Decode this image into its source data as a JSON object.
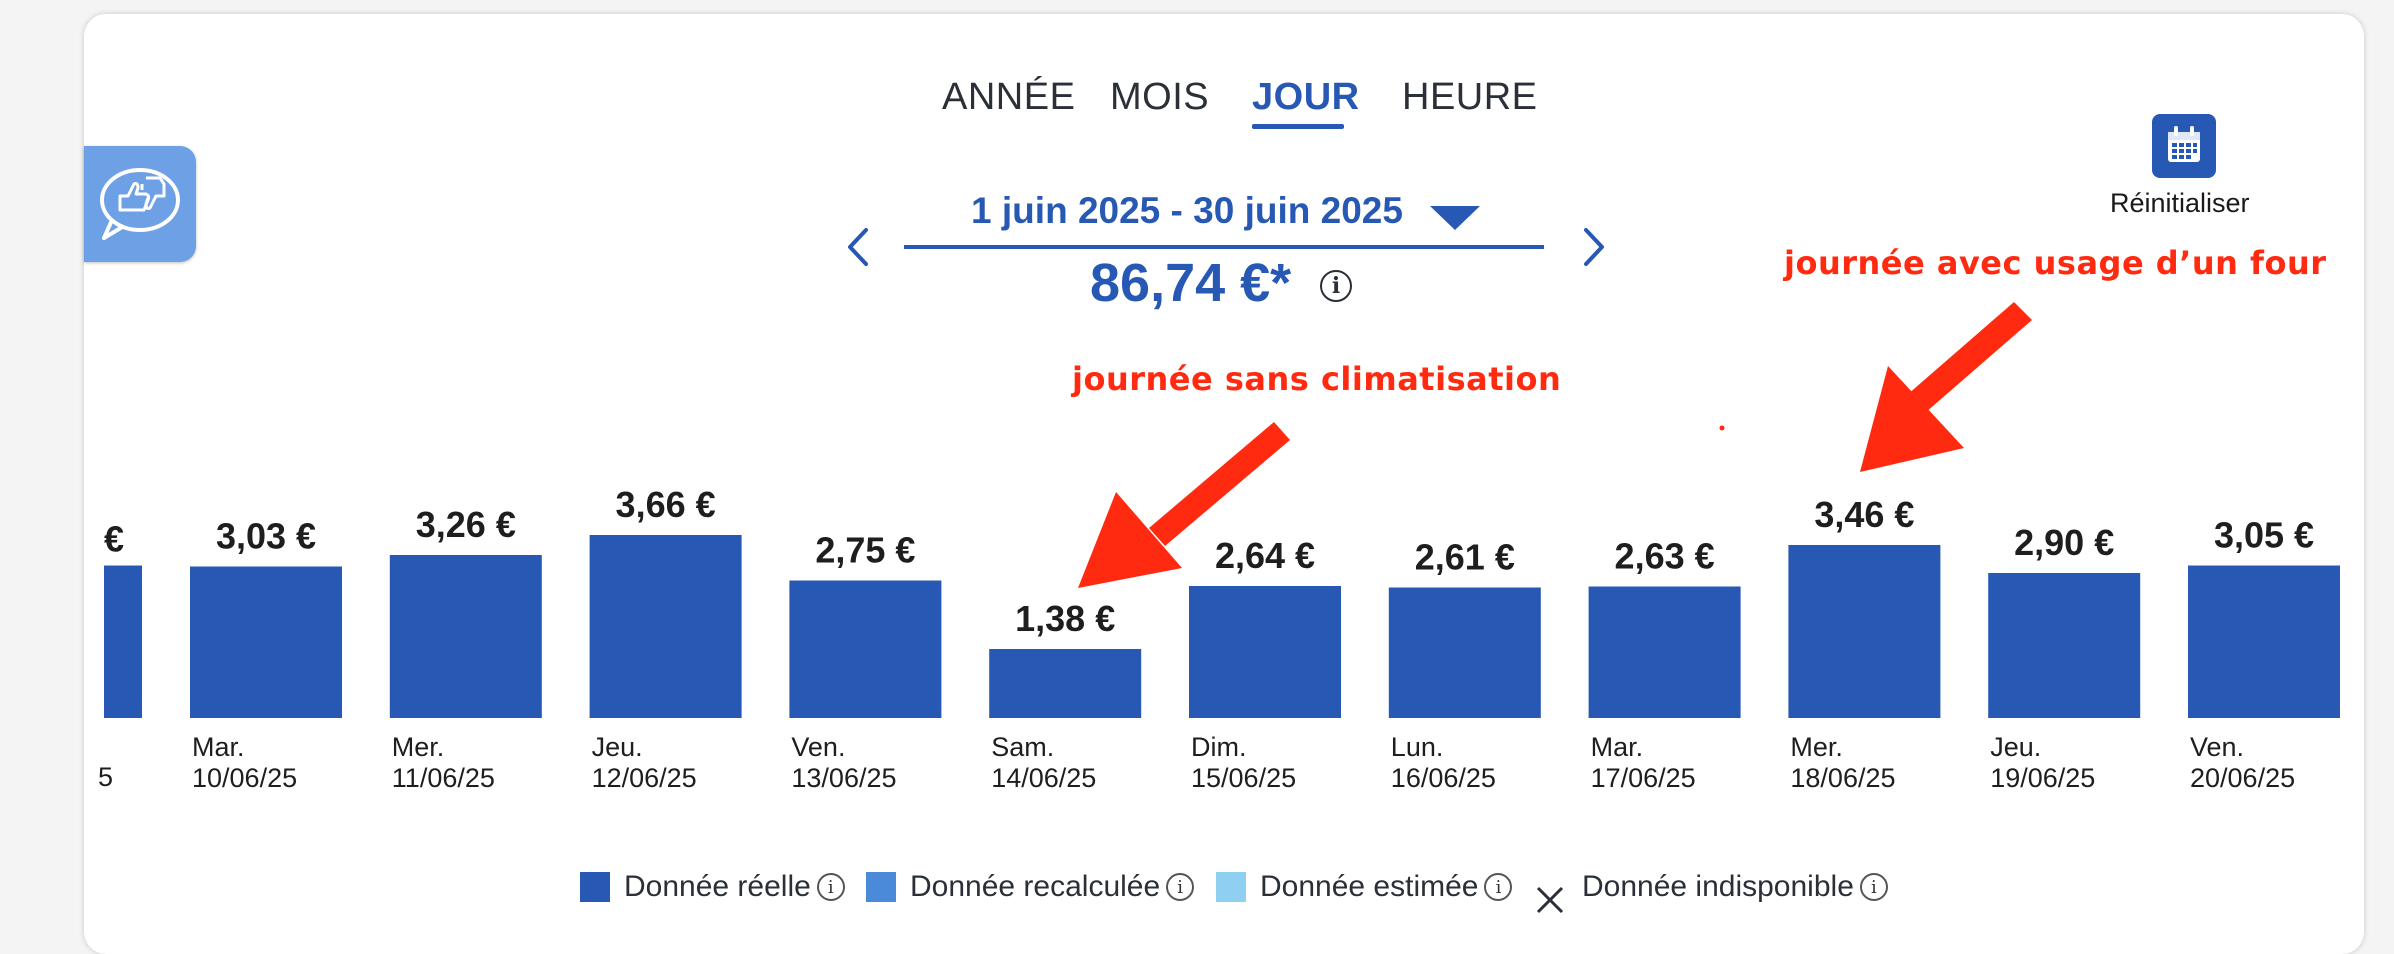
{
  "tabs": [
    {
      "label": "ANNÉE",
      "active": false
    },
    {
      "label": "MOIS",
      "active": false
    },
    {
      "label": "JOUR",
      "active": true
    },
    {
      "label": "HEURE",
      "active": false
    }
  ],
  "period": {
    "range_label": "1 juin 2025 - 30 juin 2025",
    "total": "86,74 €*",
    "info_glyph": "i"
  },
  "reset": {
    "label": "Réinitialiser",
    "icon": "calendar-icon"
  },
  "feedback": {
    "icon": "thumbs-up-down-speech-bubble-icon"
  },
  "annotations": {
    "no_ac": "journée sans climatisation",
    "oven": "journée avec usage d’un four"
  },
  "colors": {
    "bar": "#2758b3",
    "accent": "#2758b3",
    "annotation": "#ff2a10",
    "legend_reelle": "#2758b3",
    "legend_recalculee": "#4a8ad8",
    "legend_estimee": "#8fd0f2"
  },
  "chart_data": {
    "type": "bar",
    "currency_unit": "€",
    "partial_left": {
      "label": "€",
      "value": 3.05,
      "tick_fragment": "5"
    },
    "categories": [
      {
        "day": "Mar.",
        "date": "10/06/25"
      },
      {
        "day": "Mer.",
        "date": "11/06/25"
      },
      {
        "day": "Jeu.",
        "date": "12/06/25"
      },
      {
        "day": "Ven.",
        "date": "13/06/25"
      },
      {
        "day": "Sam.",
        "date": "14/06/25"
      },
      {
        "day": "Dim.",
        "date": "15/06/25"
      },
      {
        "day": "Lun.",
        "date": "16/06/25"
      },
      {
        "day": "Mar.",
        "date": "17/06/25"
      },
      {
        "day": "Mer.",
        "date": "18/06/25"
      },
      {
        "day": "Jeu.",
        "date": "19/06/25"
      },
      {
        "day": "Ven.",
        "date": "20/06/25"
      }
    ],
    "values": [
      3.03,
      3.26,
      3.66,
      2.75,
      1.38,
      2.64,
      2.61,
      2.63,
      3.46,
      2.9,
      3.05
    ],
    "value_labels": [
      "3,03 €",
      "3,26 €",
      "3,66 €",
      "2,75 €",
      "1,38 €",
      "2,64 €",
      "2,61 €",
      "2,63 €",
      "3,46 €",
      "2,90 €",
      "3,05 €"
    ],
    "ylim": [
      0,
      4.5
    ],
    "grid": false
  },
  "legend": [
    {
      "label": "Donnée réelle",
      "color": "#2758b3",
      "info": "i"
    },
    {
      "label": "Donnée recalculée",
      "color": "#4a8ad8",
      "info": "i"
    },
    {
      "label": "Donnée estimée",
      "color": "#8fd0f2",
      "info": "i"
    },
    {
      "label": "Donnée indisponible",
      "marker": "close-icon",
      "info": "i"
    }
  ]
}
